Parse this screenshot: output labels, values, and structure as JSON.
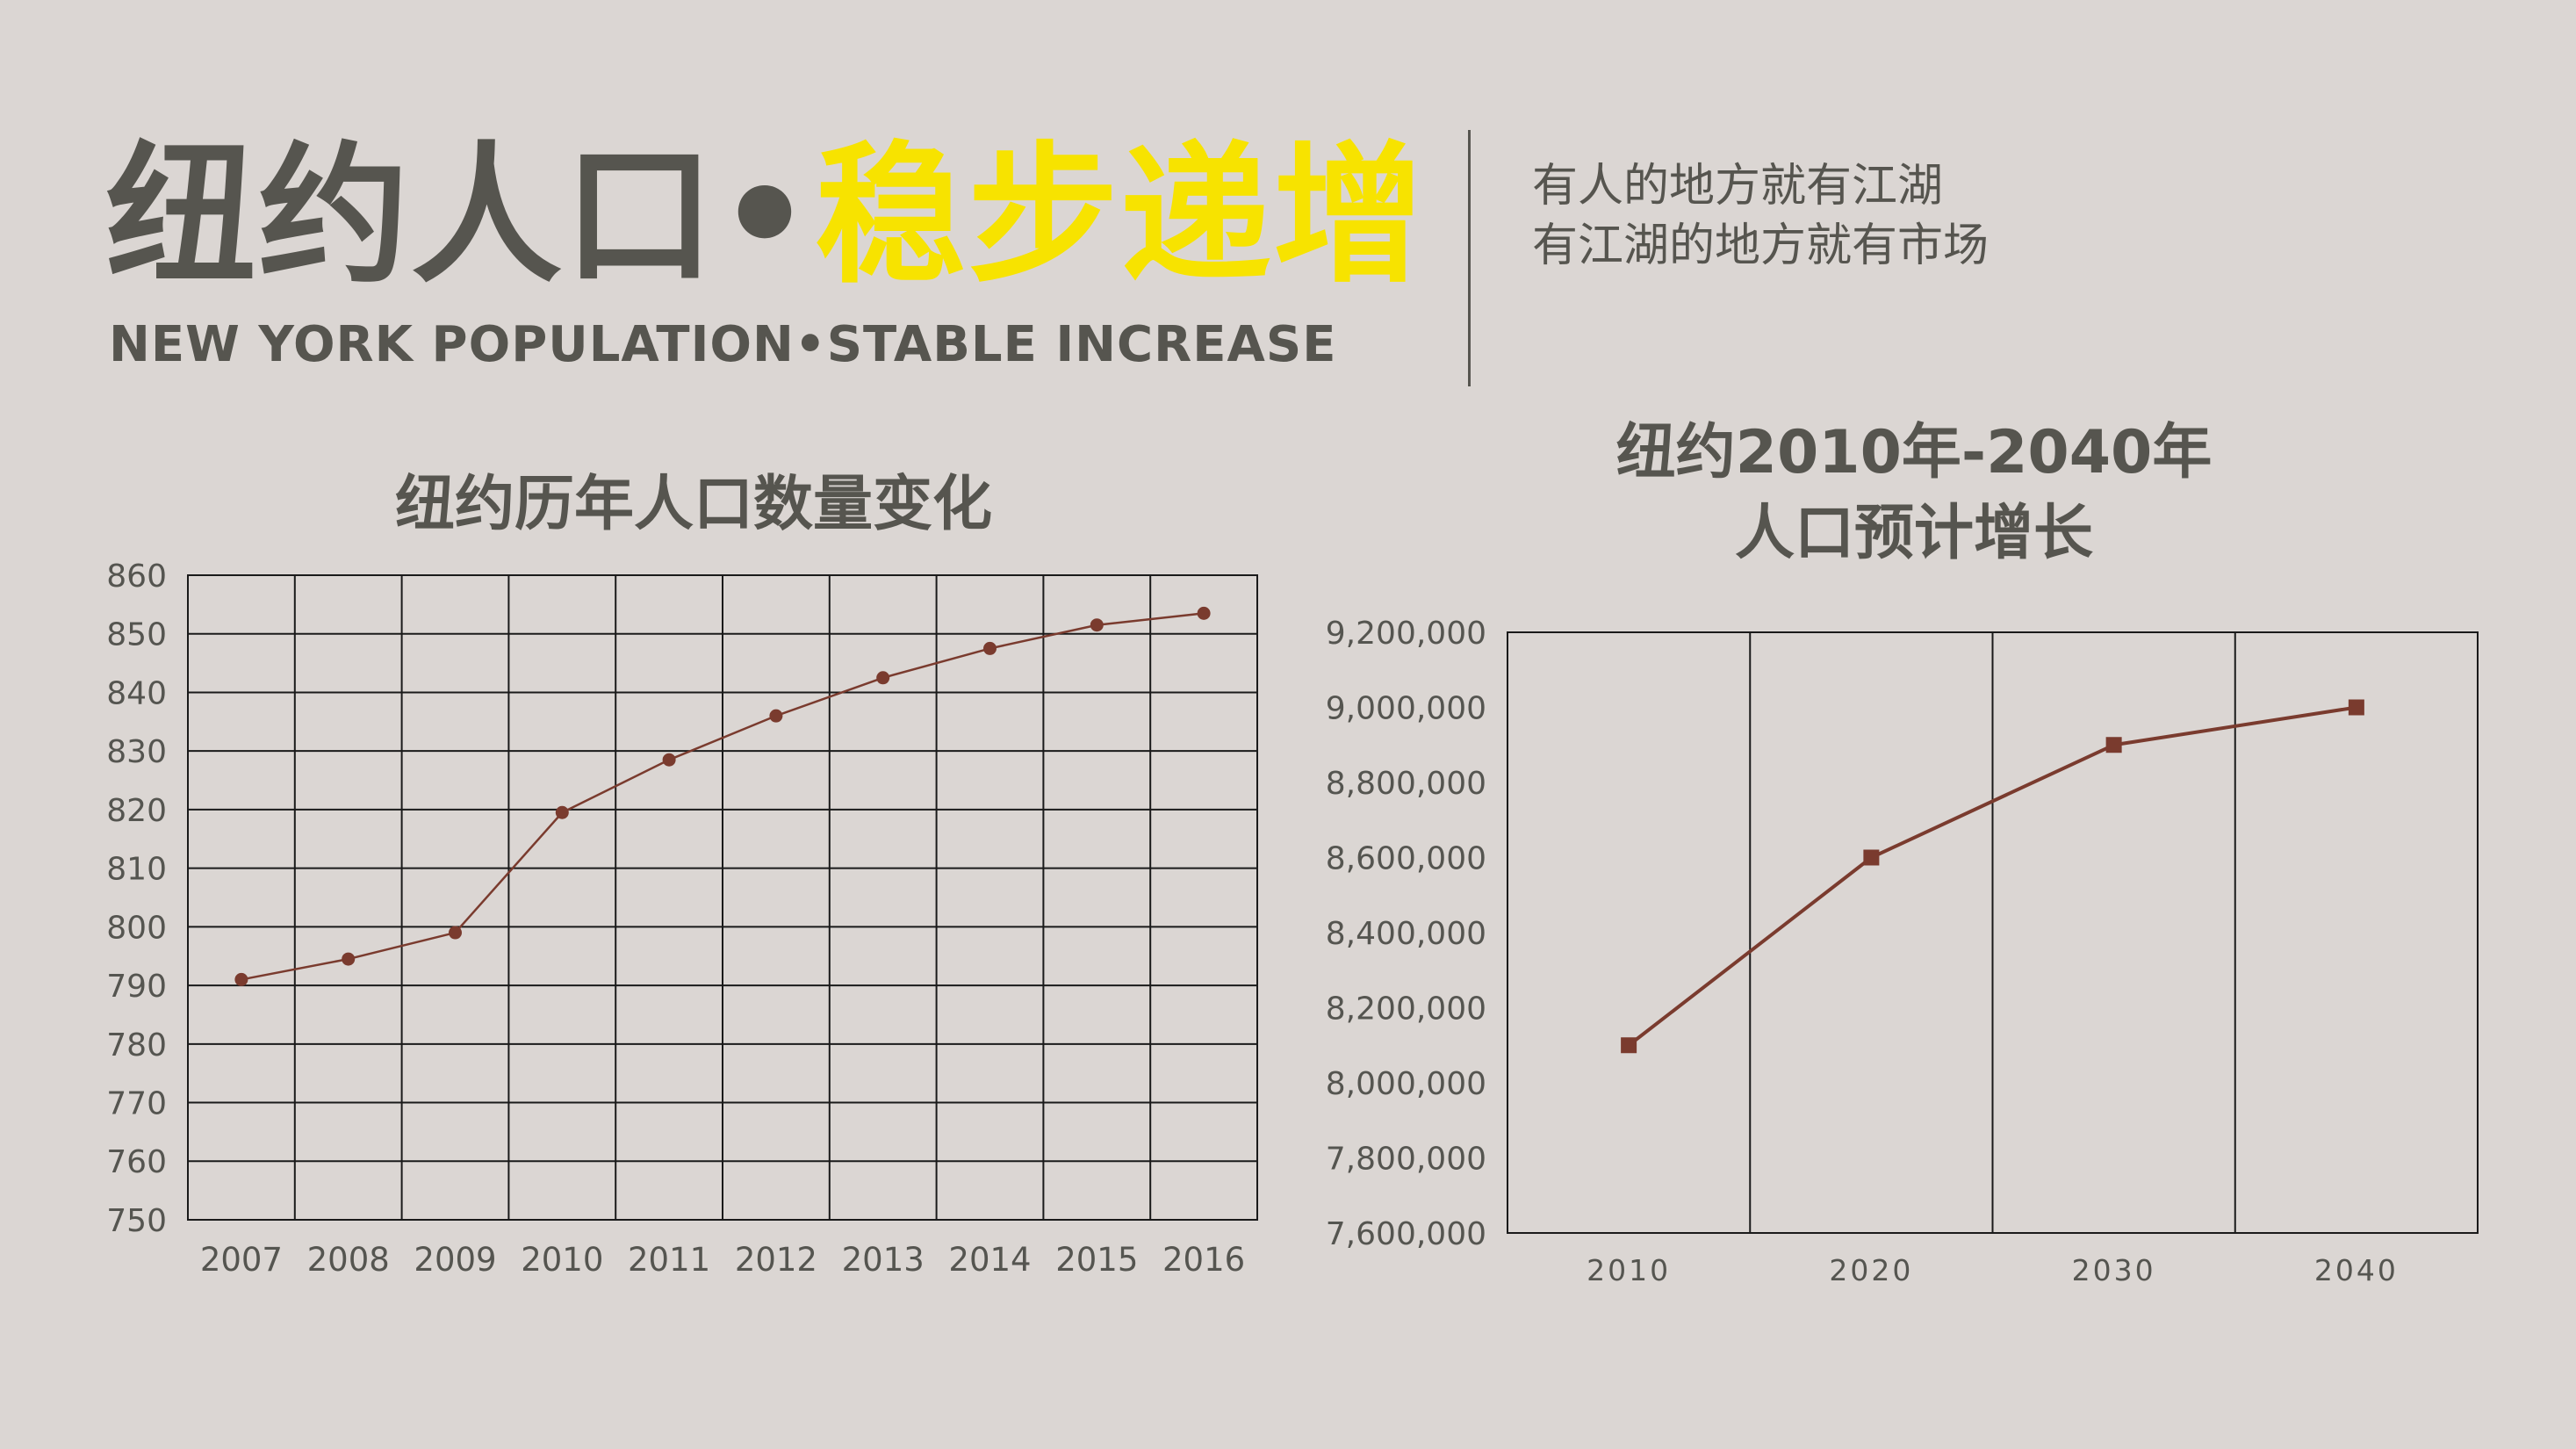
{
  "header": {
    "title_dark": "纽约人口",
    "title_dot": "•",
    "title_accent": "稳步递增",
    "subtitle_en": "NEW YORK POPULATION•STABLE INCREASE",
    "slogan_line1": "有人的地方就有江湖",
    "slogan_line2": "有江湖的地方就有市场"
  },
  "colors": {
    "background": "#dbd6d3",
    "text": "#56554f",
    "accent": "#f7e300",
    "series": "#7a3b2e"
  },
  "chart_data": [
    {
      "type": "line",
      "title": "纽约历年人口数量变化",
      "x": [
        "2007",
        "2008",
        "2009",
        "2010",
        "2011",
        "2012",
        "2013",
        "2014",
        "2015",
        "2016"
      ],
      "series": [
        {
          "values": [
            791,
            794.5,
            799,
            819.5,
            828.5,
            836,
            842.5,
            847.5,
            851.5,
            853.5
          ]
        }
      ],
      "ylim": [
        750,
        860
      ],
      "yticks": [
        "750",
        "760",
        "770",
        "780",
        "790",
        "800",
        "810",
        "820",
        "830",
        "840",
        "850",
        "860"
      ],
      "grid": "both",
      "marker": "circle",
      "xlabel": "",
      "ylabel": ""
    },
    {
      "type": "line",
      "title_line1": "纽约2010年-2040年",
      "title_line2": "人口预计增长",
      "x": [
        "2010",
        "2020",
        "2030",
        "2040"
      ],
      "series": [
        {
          "values": [
            8100000,
            8600000,
            8900000,
            9000000
          ]
        }
      ],
      "ylim": [
        7600000,
        9200000
      ],
      "yticks": [
        "7,600,000",
        "7,800,000",
        "8,000,000",
        "8,200,000",
        "8,400,000",
        "8,600,000",
        "8,800,000",
        "9,000,000",
        "9,200,000"
      ],
      "grid": "vertical",
      "marker": "square",
      "xlabel": "",
      "ylabel": ""
    }
  ]
}
